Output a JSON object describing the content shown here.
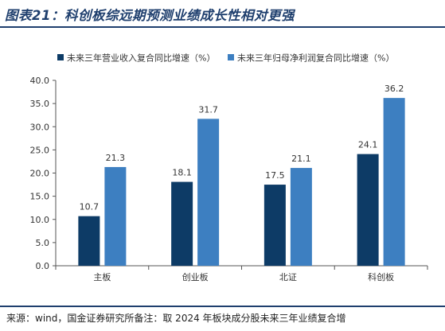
{
  "title": "图表21：科创板综远期预测业绩成长性相对更强",
  "source": "来源：wind，国金证券研究所备注：取 2024 年板块成分股未来三年业绩复合增",
  "chart_data": {
    "type": "bar",
    "categories": [
      "主板",
      "创业板",
      "北证",
      "科创板"
    ],
    "series": [
      {
        "name": "未来三年营业收入复合同比增速（%）",
        "values": [
          10.7,
          18.1,
          17.5,
          24.1
        ],
        "color": "#0d3b66"
      },
      {
        "name": "未来三年归母净利润复合同比增速（%）",
        "values": [
          21.3,
          31.7,
          21.1,
          36.2
        ],
        "color": "#3d7fc1"
      }
    ],
    "data_labels": [
      [
        "10.7",
        "18.1",
        "17.5",
        "24.1"
      ],
      [
        "21.3",
        "31.7",
        "21.1",
        "36.2"
      ]
    ],
    "ylim": [
      0,
      40
    ],
    "yticks": [
      "0.0",
      "5.0",
      "10.0",
      "15.0",
      "20.0",
      "25.0",
      "30.0",
      "35.0",
      "40.0"
    ],
    "legend_position": "top",
    "grid": false
  }
}
